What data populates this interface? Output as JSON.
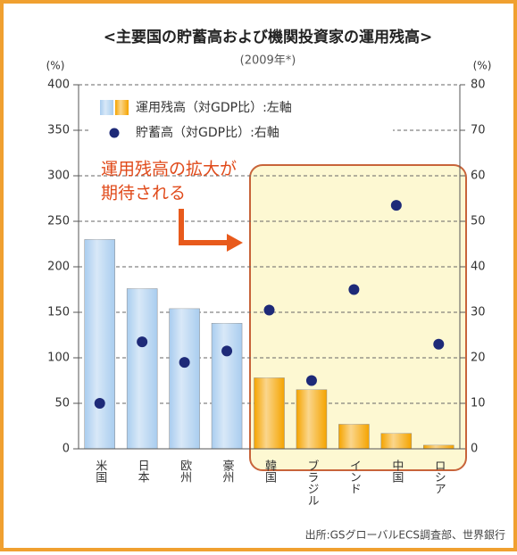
{
  "chart_data": {
    "type": "bar",
    "title": "<主要国の貯蓄高および機関投資家の運用残高>",
    "subtitle": "(2009年*)",
    "y_label": "(%)",
    "y2_label": "(%)",
    "categories": [
      "米国",
      "日本",
      "欧州",
      "豪州",
      "韓国",
      "ブラジル",
      "インド",
      "中国",
      "ロシア"
    ],
    "series": [
      {
        "name": "運用残高（対GDP比）:左軸",
        "type": "bar",
        "axis": "y",
        "colors": [
          "#a9cdef",
          "#a9cdef",
          "#a9cdef",
          "#a9cdef",
          "#f5a400",
          "#f5a400",
          "#f5a400",
          "#f5a400",
          "#f5a400"
        ],
        "values": [
          230,
          176,
          154,
          138,
          78,
          65,
          27,
          17,
          4
        ]
      },
      {
        "name": "貯蓄高（対GDP比）:右軸",
        "type": "scatter",
        "axis": "y2",
        "color": "#1e2a78",
        "values": [
          10,
          23.5,
          19,
          21.5,
          30.5,
          15,
          35,
          53.5,
          23
        ]
      }
    ],
    "ylim": [
      0,
      400
    ],
    "yticks": [
      0,
      50,
      100,
      150,
      200,
      250,
      300,
      350,
      400
    ],
    "y2lim": [
      0,
      80
    ],
    "y2ticks": [
      0,
      10,
      20,
      30,
      40,
      50,
      60,
      70,
      80
    ],
    "grid": true,
    "annotation": [
      "運用残高の拡大が",
      "期待される"
    ],
    "source": "出所:GSグローバルECS調査部、世界銀行"
  }
}
